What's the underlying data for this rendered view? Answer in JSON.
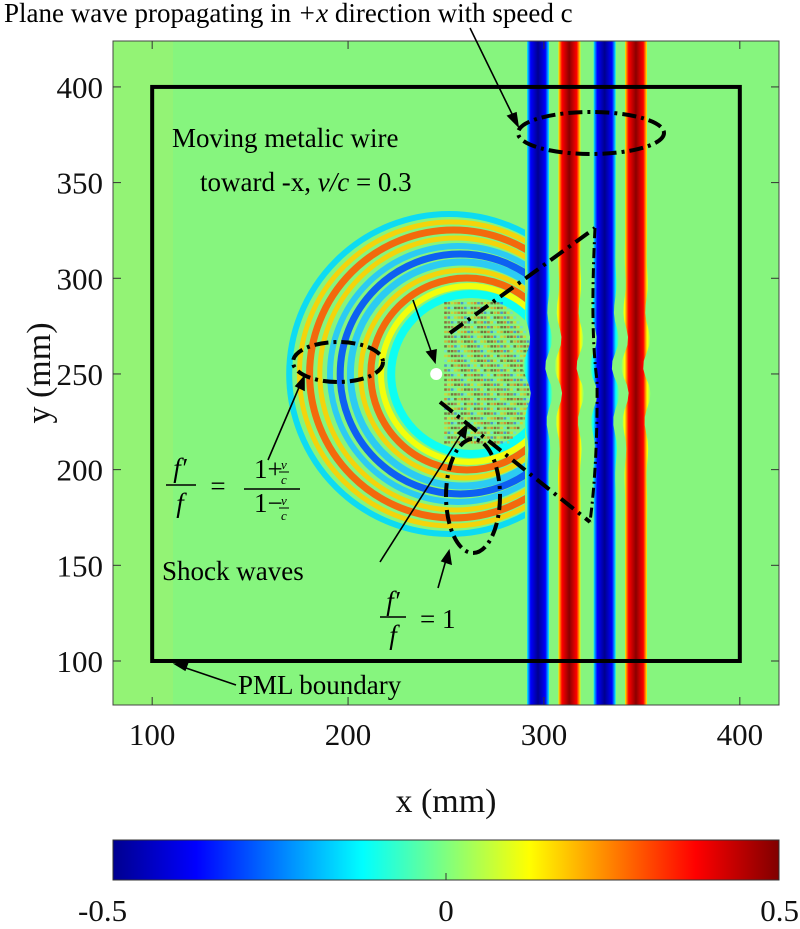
{
  "chart_data": {
    "type": "heatmap",
    "title": "",
    "xlabel": "x (mm)",
    "ylabel": "y (mm)",
    "xlim": [
      80,
      420
    ],
    "ylim": [
      77,
      424
    ],
    "xticks": [
      "100",
      "200",
      "300",
      "400"
    ],
    "yticks": [
      "100",
      "150",
      "200",
      "250",
      "300",
      "350",
      "400"
    ],
    "colorbar": {
      "colormap": "jet",
      "range": [
        -0.5,
        0.5
      ],
      "tick_labels": [
        "-0.5",
        "0",
        "0.5"
      ]
    },
    "wire": {
      "x": 245,
      "y": 250
    },
    "plane_wave_bands": [
      {
        "x": 297,
        "value": -0.5
      },
      {
        "x": 313,
        "value": 0.5
      },
      {
        "x": 331,
        "value": -0.5
      },
      {
        "x": 347,
        "value": 0.5
      }
    ],
    "pml_box": {
      "x": [
        100,
        400
      ],
      "y": [
        100,
        400
      ]
    },
    "annotations": {
      "plane_wave": {
        "prefix": "Plane wave propagating in ",
        "math": "+x",
        "suffix": " direction with speed c"
      },
      "wire_line1": "Moving metalic wire",
      "wire_line2_prefix": "toward -x, ",
      "wire_line2_math": "v/c",
      "wire_line2_suffix": " = 0.3",
      "shock_waves": "Shock waves",
      "pml": "PML boundary",
      "doppler_left": {
        "lhs_num": "f′",
        "lhs_den": "f",
        "eq": "=",
        "num": "1+",
        "den": "1−",
        "frac_num": "v",
        "frac_den": "c"
      },
      "doppler_right": {
        "lhs_num": "f′",
        "lhs_den": "f",
        "rhs": "= 1"
      }
    }
  }
}
